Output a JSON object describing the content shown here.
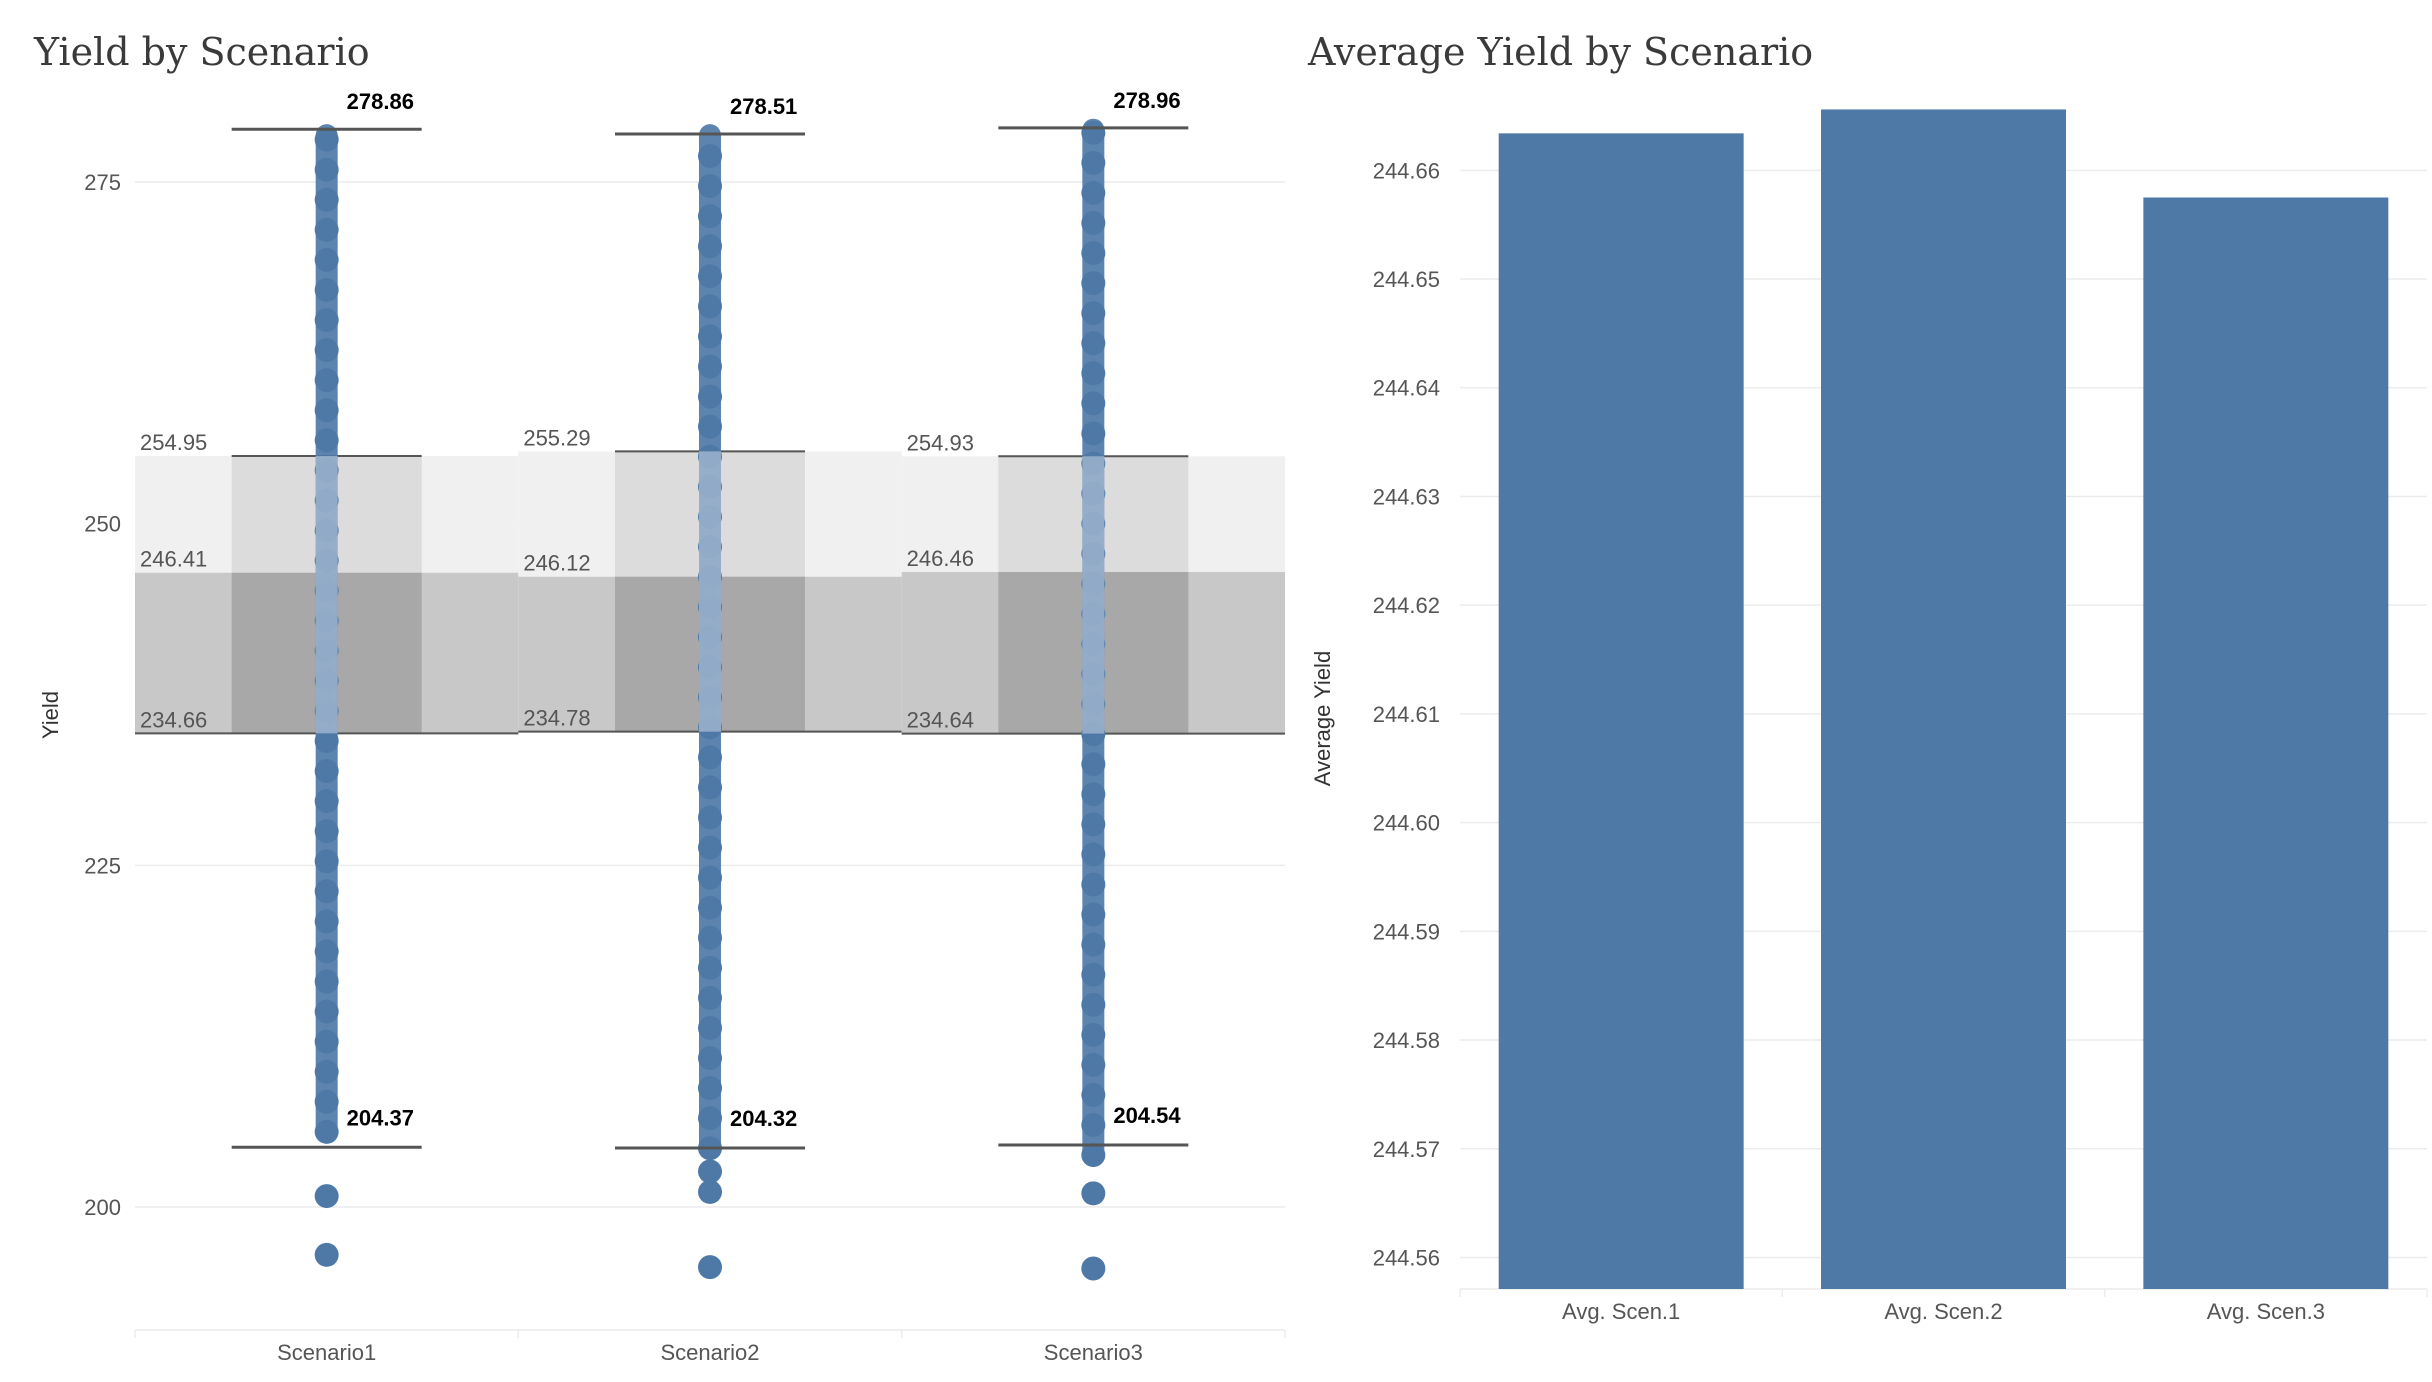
{
  "chart_data": [
    {
      "type": "scatter",
      "title": "Yield by Scenario",
      "ylabel": "Yield",
      "xlabel": "",
      "categories": [
        "Scenario1",
        "Scenario2",
        "Scenario3"
      ],
      "ylim": [
        191,
        281
      ],
      "yticks": [
        200,
        225,
        250,
        275
      ],
      "grid": true,
      "series": [
        {
          "category": "Scenario1",
          "max": 278.86,
          "min": 204.37,
          "upper": 254.95,
          "mean": 246.41,
          "lower": 234.66,
          "max_label": "278.86",
          "min_label": "204.37",
          "upper_label": "254.95",
          "mean_label": "246.41",
          "lower_label": "234.66",
          "outliers": [
            200.8,
            196.5
          ],
          "dense_range": [
            205.5,
            278.5
          ]
        },
        {
          "category": "Scenario2",
          "max": 278.51,
          "min": 204.32,
          "upper": 255.29,
          "mean": 246.12,
          "lower": 234.78,
          "max_label": "278.51",
          "min_label": "204.32",
          "upper_label": "255.29",
          "mean_label": "246.12",
          "lower_label": "234.78",
          "outliers": [
            202.6,
            201.1,
            195.6
          ],
          "dense_range": [
            204.3,
            278.5
          ]
        },
        {
          "category": "Scenario3",
          "max": 278.96,
          "min": 204.54,
          "upper": 254.93,
          "mean": 246.46,
          "lower": 234.64,
          "max_label": "278.96",
          "min_label": "204.54",
          "upper_label": "254.93",
          "mean_label": "246.46",
          "lower_label": "234.64",
          "outliers": [
            201.0,
            195.5
          ],
          "dense_range": [
            203.8,
            278.9
          ]
        }
      ]
    },
    {
      "type": "bar",
      "title": "Average Yield by Scenario",
      "ylabel": "Average Yield",
      "xlabel": "",
      "categories": [
        "Avg. Scen.1",
        "Avg. Scen.2",
        "Avg. Scen.3"
      ],
      "values": [
        244.6634,
        244.6656,
        244.6575
      ],
      "ylim": [
        244.5571,
        244.6661
      ],
      "yticks": [
        244.56,
        244.57,
        244.58,
        244.59,
        244.6,
        244.61,
        244.62,
        244.63,
        244.64,
        244.65,
        244.66
      ],
      "ytick_labels": [
        "244.56",
        "244.57",
        "244.58",
        "244.59",
        "244.60",
        "244.61",
        "244.62",
        "244.63",
        "244.64",
        "244.65",
        "244.66"
      ],
      "grid": true
    }
  ],
  "colors": {
    "point": "#4e79a7",
    "band_upper": "#f0f0f0",
    "band_lower": "#c8c8c8",
    "band_upper_dark": "#dcdcdc",
    "band_lower_dark": "#a8a8a8",
    "grid": "#ececec",
    "ref_line": "#555555",
    "text": "#555555",
    "bar": "#4e79a7"
  }
}
